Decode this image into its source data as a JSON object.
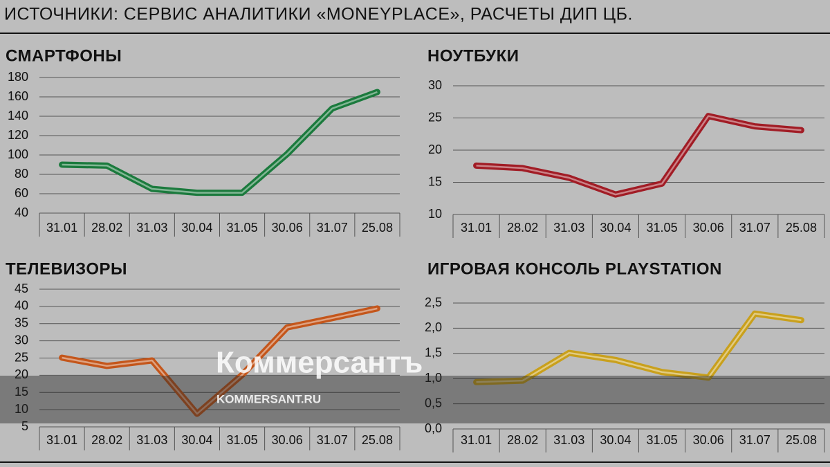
{
  "source": "ИСТОЧНИКИ: СЕРВИС АНАЛИТИКИ «MONEYPLACE», РАСЧЕТЫ ДИП ЦБ.",
  "watermark": {
    "brand": "Коммерсантъ",
    "site": "KOMMERSANT.RU"
  },
  "chart_data": [
    {
      "type": "line",
      "title": "СМАРТФОНЫ",
      "categories": [
        "31.01",
        "28.02",
        "31.03",
        "30.04",
        "31.05",
        "30.06",
        "31.07",
        "25.08"
      ],
      "values": [
        90,
        89,
        65,
        61,
        61,
        101,
        148,
        165
      ],
      "color": "#1b7a3d",
      "ylim": [
        40,
        180
      ],
      "yticks": [
        40,
        60,
        80,
        100,
        120,
        140,
        160,
        180
      ],
      "grid": true
    },
    {
      "type": "line",
      "title": "НОУТБУКИ",
      "categories": [
        "31.01",
        "28.02",
        "31.03",
        "30.04",
        "31.05",
        "30.06",
        "31.07",
        "25.08"
      ],
      "values": [
        17.6,
        17.2,
        15.7,
        13.1,
        14.8,
        25.3,
        23.7,
        23.1
      ],
      "color": "#a11c25",
      "ylim": [
        10,
        30
      ],
      "yticks": [
        10,
        15,
        20,
        25,
        30
      ],
      "grid": true
    },
    {
      "type": "line",
      "title": "ТЕЛЕВИЗОРЫ",
      "categories": [
        "31.01",
        "28.02",
        "31.03",
        "30.04",
        "31.05",
        "30.06",
        "31.07",
        "25.08"
      ],
      "values": [
        25.1,
        22.7,
        24.3,
        8.8,
        20.1,
        33.9,
        36.6,
        39.4
      ],
      "color": "#c4561b",
      "ylim": [
        5,
        45
      ],
      "yticks": [
        5,
        10,
        15,
        20,
        25,
        30,
        35,
        40,
        45
      ],
      "grid": true
    },
    {
      "type": "line",
      "title": "ИГРОВАЯ КОНСОЛЬ PLAYSTATION",
      "categories": [
        "31.01",
        "28.02",
        "31.03",
        "30.04",
        "31.05",
        "30.06",
        "31.07",
        "25.08"
      ],
      "values": [
        0.93,
        0.96,
        1.51,
        1.37,
        1.13,
        1.02,
        2.29,
        2.16
      ],
      "color": "#c9a01c",
      "ylim": [
        0,
        2.5
      ],
      "yticks": [
        {
          "value": 0,
          "label": "0,0"
        },
        {
          "value": 0.5,
          "label": "0,5"
        },
        {
          "value": 1,
          "label": "1,0"
        },
        {
          "value": 1.5,
          "label": "1,5"
        },
        {
          "value": 2,
          "label": "2,0"
        },
        {
          "value": 2.5,
          "label": "2,5"
        }
      ],
      "grid": true
    }
  ]
}
